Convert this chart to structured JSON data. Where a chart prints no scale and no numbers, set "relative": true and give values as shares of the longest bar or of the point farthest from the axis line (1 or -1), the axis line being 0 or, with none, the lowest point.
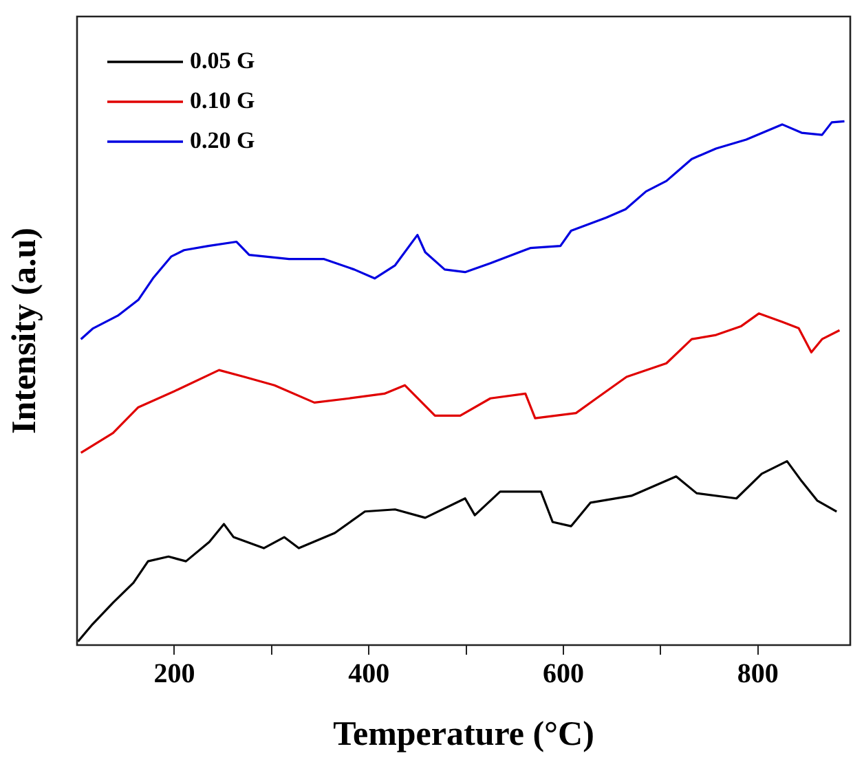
{
  "chart_data": {
    "type": "line",
    "xlabel": "Temperature (°C)",
    "ylabel": "Intensity (a.u)",
    "relative": true,
    "xlim": [
      100,
      895
    ],
    "xticks": [
      200,
      {
        "value": 300,
        "label": null
      },
      400,
      {
        "value": 500,
        "label": null
      },
      600,
      {
        "value": 700,
        "label": null
      },
      800
    ],
    "legend": "top left",
    "grid": false,
    "marker": "none",
    "line_style": "solid",
    "series": [
      {
        "name": "0.05 G",
        "color": "#000000",
        "x": [
          101,
          116,
          137,
          158,
          173,
          194,
          212,
          236,
          251,
          261,
          292,
          313,
          328,
          365,
          396,
          427,
          458,
          499,
          509,
          535,
          577,
          589,
          608,
          628,
          670,
          716,
          737,
          778,
          804,
          830,
          845,
          861,
          881
        ],
        "values": [
          0.007,
          0.04,
          0.081,
          0.119,
          0.16,
          0.169,
          0.16,
          0.197,
          0.231,
          0.206,
          0.185,
          0.206,
          0.185,
          0.214,
          0.255,
          0.259,
          0.243,
          0.28,
          0.248,
          0.293,
          0.293,
          0.235,
          0.227,
          0.272,
          0.285,
          0.322,
          0.29,
          0.28,
          0.327,
          0.351,
          0.313,
          0.276,
          0.255
        ]
      },
      {
        "name": "0.10 G",
        "color": "#e00000",
        "x": [
          104,
          137,
          163,
          204,
          246,
          272,
          303,
          344,
          380,
          416,
          437,
          468,
          494,
          525,
          561,
          571,
          613,
          634,
          665,
          706,
          732,
          757,
          783,
          801,
          825,
          842,
          855,
          866,
          884
        ],
        "values": [
          0.367,
          0.405,
          0.454,
          0.488,
          0.525,
          0.512,
          0.496,
          0.463,
          0.471,
          0.48,
          0.496,
          0.438,
          0.438,
          0.471,
          0.48,
          0.433,
          0.443,
          0.471,
          0.512,
          0.538,
          0.584,
          0.592,
          0.609,
          0.633,
          0.617,
          0.605,
          0.559,
          0.584,
          0.601
        ]
      },
      {
        "name": "0.20 G",
        "color": "#0000e0",
        "x": [
          104,
          116,
          142,
          163,
          178,
          197,
          210,
          235,
          264,
          277,
          318,
          354,
          385,
          406,
          427,
          450,
          458,
          478,
          499,
          525,
          566,
          597,
          608,
          644,
          664,
          685,
          706,
          732,
          757,
          788,
          825,
          845,
          866,
          876,
          889
        ],
        "values": [
          0.584,
          0.604,
          0.629,
          0.659,
          0.7,
          0.742,
          0.754,
          0.762,
          0.77,
          0.745,
          0.737,
          0.737,
          0.717,
          0.7,
          0.725,
          0.783,
          0.75,
          0.717,
          0.712,
          0.729,
          0.758,
          0.762,
          0.791,
          0.816,
          0.832,
          0.866,
          0.886,
          0.928,
          0.948,
          0.965,
          0.994,
          0.978,
          0.974,
          0.998,
          1
        ]
      }
    ]
  }
}
